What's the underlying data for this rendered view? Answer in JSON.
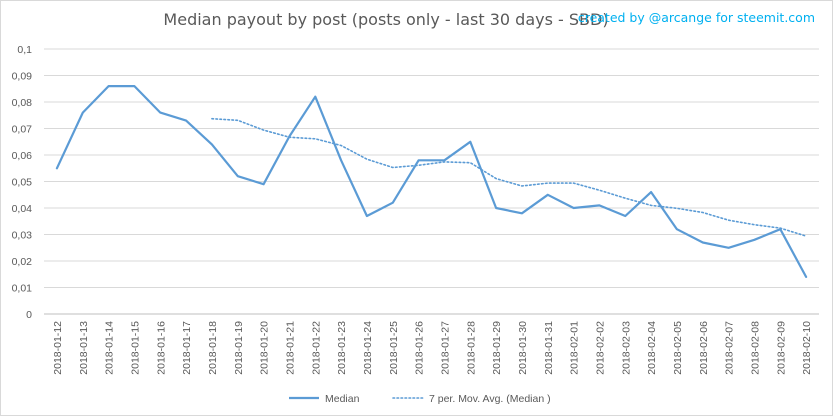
{
  "header": {
    "title": "Median payout by post (posts only - last 30 days - SBD)",
    "credit": "created by @arcange for steemit.com"
  },
  "chart_data": {
    "type": "line",
    "title": "Median payout by post (posts only - last 30 days - SBD)",
    "xlabel": "",
    "ylabel": "",
    "ylim": [
      0,
      0.1
    ],
    "yticks": [
      "0",
      "0,01",
      "0,02",
      "0,03",
      "0,04",
      "0,05",
      "0,06",
      "0,07",
      "0,08",
      "0,09",
      "0,1"
    ],
    "grid": true,
    "legend_position": "bottom",
    "categories": [
      "2018-01-12",
      "2018-01-13",
      "2018-01-14",
      "2018-01-15",
      "2018-01-16",
      "2018-01-17",
      "2018-01-18",
      "2018-01-19",
      "2018-01-20",
      "2018-01-21",
      "2018-01-22",
      "2018-01-23",
      "2018-01-24",
      "2018-01-25",
      "2018-01-26",
      "2018-01-27",
      "2018-01-28",
      "2018-01-29",
      "2018-01-30",
      "2018-01-31",
      "2018-02-01",
      "2018-02-02",
      "2018-02-03",
      "2018-02-04",
      "2018-02-05",
      "2018-02-06",
      "2018-02-07",
      "2018-02-08",
      "2018-02-09",
      "2018-02-10"
    ],
    "series": [
      {
        "name": "Median",
        "style": "solid",
        "color": "#5b9bd5",
        "values": [
          0.055,
          0.076,
          0.086,
          0.086,
          0.076,
          0.073,
          0.064,
          0.052,
          0.049,
          0.067,
          0.082,
          0.058,
          0.037,
          0.042,
          0.058,
          0.058,
          0.065,
          0.04,
          0.038,
          0.045,
          0.04,
          0.041,
          0.037,
          0.046,
          0.032,
          0.027,
          0.025,
          0.028,
          0.032,
          0.014
        ]
      },
      {
        "name": "7 per. Mov. Avg. (Median )",
        "style": "dotted",
        "color": "#5b9bd5",
        "values": [
          null,
          null,
          null,
          null,
          null,
          null,
          0.0737,
          0.0731,
          0.0694,
          0.0667,
          0.0661,
          0.0636,
          0.0584,
          0.0553,
          0.0561,
          0.0574,
          0.0571,
          0.0511,
          0.0483,
          0.0494,
          0.0494,
          0.0467,
          0.0437,
          0.041,
          0.0399,
          0.0383,
          0.0354,
          0.0337,
          0.0324,
          0.0294
        ]
      }
    ]
  }
}
